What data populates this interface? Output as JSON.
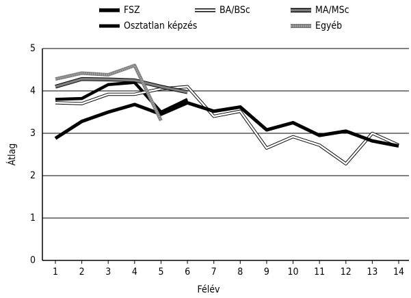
{
  "chart_data": {
    "type": "line",
    "x_label": "Félév",
    "y_label": "Átlag",
    "categories": [
      "1",
      "2",
      "3",
      "4",
      "5",
      "6",
      "7",
      "8",
      "9",
      "10",
      "11",
      "12",
      "13",
      "14"
    ],
    "ylim": [
      0,
      5
    ],
    "yticks": [
      0,
      1,
      2,
      3,
      4,
      5
    ],
    "grid": true,
    "series": [
      {
        "name": "FSZ",
        "color": "#000000",
        "values": [
          3.8,
          3.82,
          4.15,
          4.2,
          3.5,
          3.8,
          null,
          null,
          null,
          null,
          null,
          null,
          null,
          null
        ]
      },
      {
        "name": "BA/BSc",
        "color": "#ffffff",
        "values": [
          3.72,
          3.7,
          3.92,
          3.92,
          4.05,
          4.1,
          3.4,
          3.52,
          2.65,
          2.92,
          2.72,
          2.28,
          3.0,
          2.72
        ]
      },
      {
        "name": "MA/MSc",
        "color": "#808080",
        "values": [
          4.1,
          4.28,
          4.27,
          4.25,
          4.1,
          3.97,
          null,
          null,
          null,
          null,
          null,
          null,
          null,
          null
        ]
      },
      {
        "name": "Osztatlan képzés",
        "color": "#000000",
        "values": [
          2.88,
          3.28,
          3.5,
          3.68,
          3.45,
          3.72,
          3.52,
          3.62,
          3.08,
          3.25,
          2.95,
          3.05,
          2.82,
          2.7
        ]
      },
      {
        "name": "Egyéb",
        "color": "#a0a0a0",
        "values": [
          4.28,
          4.42,
          4.38,
          4.6,
          3.3,
          null,
          null,
          null,
          null,
          null,
          null,
          null,
          null,
          null
        ]
      }
    ]
  }
}
